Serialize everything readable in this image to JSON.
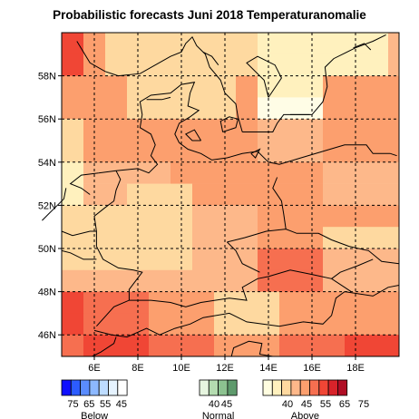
{
  "title": "Probabilistic forecasts Juni 2018 Temperaturanomalie",
  "map": {
    "lon_range": [
      4.5,
      20.0
    ],
    "lat_range": [
      45.0,
      60.0
    ],
    "lon_ticks": [
      {
        "value": 6,
        "label": "6E"
      },
      {
        "value": 8,
        "label": "8E"
      },
      {
        "value": 10,
        "label": "10E"
      },
      {
        "value": 12,
        "label": "12E"
      },
      {
        "value": 14,
        "label": "14E"
      },
      {
        "value": 16,
        "label": "16E"
      },
      {
        "value": 18,
        "label": "18E"
      }
    ],
    "lat_ticks": [
      {
        "value": 46,
        "label": "46N"
      },
      {
        "value": 48,
        "label": "48N"
      },
      {
        "value": 50,
        "label": "50N"
      },
      {
        "value": 52,
        "label": "52N"
      },
      {
        "value": 54,
        "label": "54N"
      },
      {
        "value": 56,
        "label": "56N"
      },
      {
        "value": 58,
        "label": "58N"
      }
    ],
    "grid": "dashed",
    "grid_cells_note": "",
    "cells": [
      [
        "above_65",
        "above_55",
        "above_45",
        "above_45",
        "above_45",
        "above_45",
        "above_45",
        "above_45",
        "above_45",
        "above_40",
        "above_40",
        "above_40",
        "above_40",
        "above_40",
        "above_40",
        "above_50"
      ],
      [
        "above_65",
        "above_55",
        "above_45",
        "above_45",
        "above_45",
        "above_45",
        "above_45",
        "above_45",
        "above_45",
        "above_40",
        "above_40",
        "above_40",
        "above_40",
        "above_40",
        "above_40",
        "above_50"
      ],
      [
        "above_55",
        "above_55",
        "above_55",
        "above_45",
        "above_45",
        "above_45",
        "above_45",
        "above_45",
        "above_55",
        "above_40",
        "above_40",
        "above_40",
        "above_55",
        "above_55",
        "above_55",
        "above_55"
      ],
      [
        "above_55",
        "above_55",
        "above_55",
        "above_45",
        "above_45",
        "above_45",
        "above_45",
        "above_45",
        "above_55",
        "normal_w",
        "normal_w",
        "normal_w",
        "above_55",
        "above_55",
        "above_55",
        "above_55"
      ],
      [
        "above_45",
        "above_55",
        "above_55",
        "above_55",
        "above_55",
        "above_55",
        "above_55",
        "above_55",
        "above_55",
        "above_50",
        "above_50",
        "above_50",
        "above_55",
        "above_55",
        "above_55",
        "above_55"
      ],
      [
        "above_45",
        "above_55",
        "above_55",
        "above_55",
        "above_55",
        "above_55",
        "above_55",
        "above_55",
        "above_55",
        "above_50",
        "above_50",
        "above_50",
        "above_55",
        "above_55",
        "above_55",
        "above_55"
      ],
      [
        "above_40",
        "above_50",
        "above_50",
        "above_50",
        "above_50",
        "above_55",
        "above_55",
        "above_55",
        "above_55",
        "above_55",
        "above_55",
        "above_55",
        "above_50",
        "above_50",
        "above_50",
        "above_50"
      ],
      [
        "above_40",
        "above_50",
        "above_50",
        "above_45",
        "above_45",
        "above_45",
        "above_55",
        "above_55",
        "above_55",
        "above_55",
        "above_55",
        "above_55",
        "above_50",
        "above_50",
        "above_50",
        "above_50"
      ],
      [
        "above_45",
        "above_45",
        "above_45",
        "above_45",
        "above_45",
        "above_45",
        "above_50",
        "above_50",
        "above_50",
        "above_55",
        "above_55",
        "above_55",
        "above_55",
        "above_55",
        "above_55",
        "above_55"
      ],
      [
        "above_45",
        "above_45",
        "above_45",
        "above_45",
        "above_45",
        "above_45",
        "above_50",
        "above_50",
        "above_50",
        "above_55",
        "above_55",
        "above_55",
        "above_45",
        "above_45",
        "above_45",
        "above_45"
      ],
      [
        "above_45",
        "above_45",
        "above_45",
        "above_45",
        "above_45",
        "above_45",
        "above_50",
        "above_50",
        "above_50",
        "above_60",
        "above_60",
        "above_60",
        "above_50",
        "above_50",
        "above_50",
        "above_50"
      ],
      [
        "above_50",
        "above_50",
        "above_50",
        "above_50",
        "above_50",
        "above_50",
        "above_50",
        "above_50",
        "above_50",
        "above_60",
        "above_60",
        "above_60",
        "above_50",
        "above_50",
        "above_50",
        "above_50"
      ],
      [
        "above_65",
        "above_60",
        "above_60",
        "above_60",
        "above_55",
        "above_55",
        "above_55",
        "above_45",
        "above_45",
        "above_45",
        "above_55",
        "above_55",
        "above_55",
        "above_55",
        "above_55",
        "above_55"
      ],
      [
        "above_65",
        "above_60",
        "above_60",
        "above_60",
        "above_55",
        "above_55",
        "above_55",
        "above_45",
        "above_45",
        "above_45",
        "above_55",
        "above_55",
        "above_55",
        "above_55",
        "above_55",
        "above_55"
      ],
      [
        "above_60",
        "above_65",
        "above_65",
        "above_65",
        "above_60",
        "above_60",
        "above_60",
        "above_55",
        "above_55",
        "above_55",
        "above_60",
        "above_60",
        "above_60",
        "above_65",
        "above_65",
        "above_65"
      ],
      [
        "above_60",
        "above_65",
        "above_65",
        "above_65",
        "above_60",
        "above_60",
        "above_60",
        "above_55",
        "above_55",
        "above_55",
        "above_60",
        "above_60",
        "above_60",
        "above_65",
        "above_65",
        "above_65"
      ],
      [
        "above_55",
        "above_55",
        "above_55",
        "above_55",
        "above_55",
        "above_55",
        "above_55",
        "above_55",
        "above_55",
        "above_55",
        "above_55",
        "above_55",
        "above_55",
        "above_55",
        "above_55",
        "above_55"
      ]
    ],
    "cell_colors": {
      "above_40": "#fff1be",
      "above_45": "#fed9a0",
      "above_50": "#fdb88a",
      "above_55": "#fc9f6e",
      "above_60": "#f66f50",
      "above_65": "#f04635",
      "normal_w": "#fffde6"
    }
  },
  "legend": {
    "below": {
      "label": "Below",
      "colors": [
        "#1010ff",
        "#2c5cff",
        "#5a8cff",
        "#8cb8ff",
        "#bddcff",
        "#e6f3ff",
        "#ffffff"
      ],
      "tick_labels": [
        "75",
        "65",
        "55",
        "45"
      ]
    },
    "normal": {
      "label": "Normal",
      "colors": [
        "#e6f5df",
        "#b4dcb0",
        "#8cc290",
        "#5e9a6c"
      ],
      "tick_labels": [
        "40",
        "45"
      ]
    },
    "above": {
      "label": "Above",
      "colors": [
        "#fffde0",
        "#fff1be",
        "#fed9a0",
        "#fdb88a",
        "#fc9f6e",
        "#f66f50",
        "#f04635",
        "#d8232a",
        "#b00d24"
      ],
      "tick_labels": [
        "40",
        "45",
        "55",
        "65",
        "75"
      ]
    }
  },
  "colors": {
    "grid": "#000000",
    "coast": "#000000"
  }
}
